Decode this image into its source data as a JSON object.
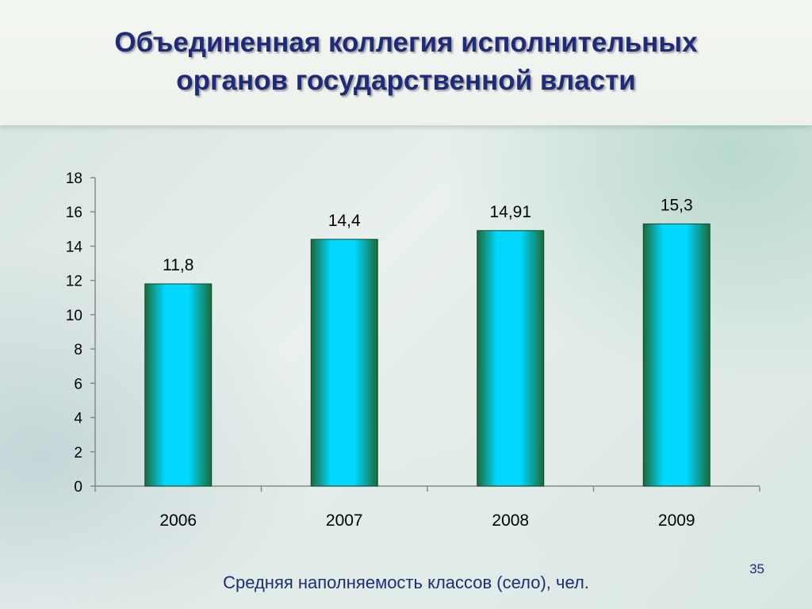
{
  "slide": {
    "title_line1": "Объединенная коллегия исполнительных",
    "title_line2": "органов государственной власти",
    "footer_label": "Средняя наполняемость классов (село), чел.",
    "page_number": "35"
  },
  "colors": {
    "title": "#1f2a7a",
    "bar_edge": "#1a6b3a",
    "bar_center": "#00d8ff"
  },
  "chart_data": {
    "type": "bar",
    "categories": [
      "2006",
      "2007",
      "2008",
      "2009"
    ],
    "values": [
      11.8,
      14.4,
      14.91,
      15.3
    ],
    "data_labels": [
      "11,8",
      "14,4",
      "14,91",
      "15,3"
    ],
    "y_ticks": [
      "0",
      "2",
      "4",
      "6",
      "8",
      "10",
      "12",
      "14",
      "16",
      "18"
    ],
    "ylim": [
      0,
      18
    ],
    "title": "",
    "xlabel": "",
    "ylabel": "",
    "grid": false,
    "legend": "none"
  }
}
